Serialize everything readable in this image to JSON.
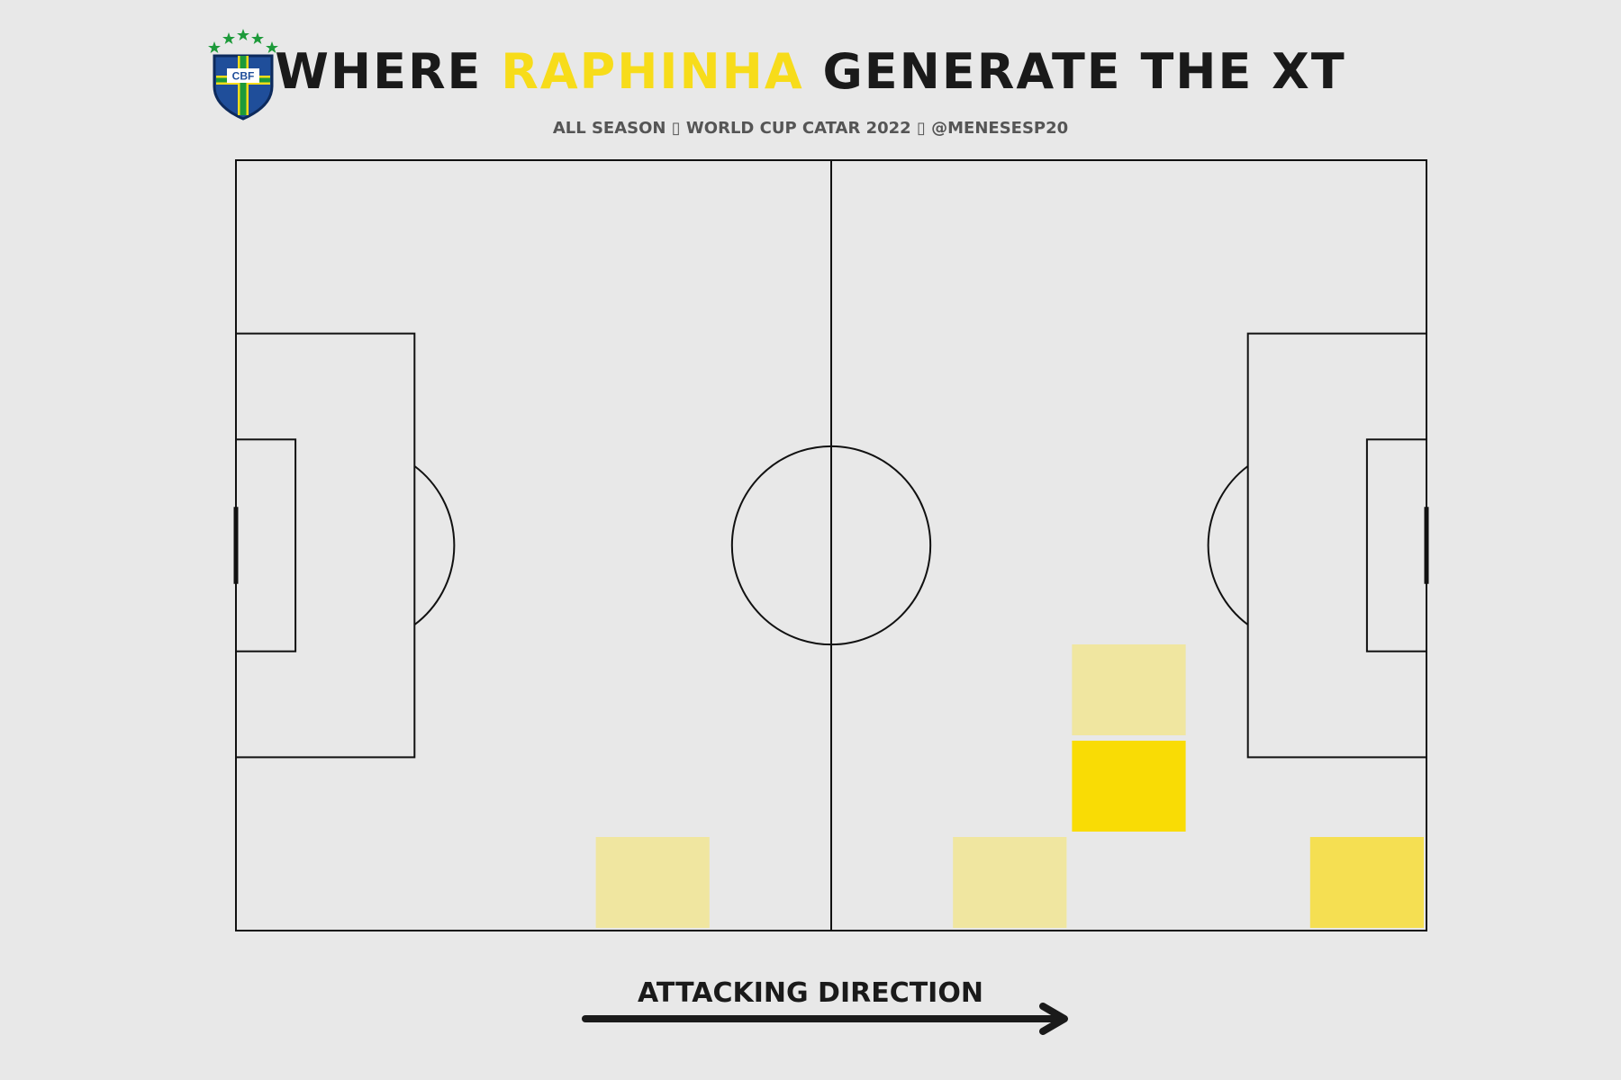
{
  "header": {
    "title_prefix": "Where ",
    "title_highlight": "Raphinha",
    "title_suffix": " generate the xT",
    "subtitle": "All season ▯ World Cup Catar 2022 ▯ @MENESESP20",
    "highlight_color": "#f7dc1a"
  },
  "logo": {
    "icon": "cbf-crest-icon",
    "text": "CBF"
  },
  "footer": {
    "direction_label": "Attacking Direction",
    "arrow_icon": "arrow-right-icon"
  },
  "chart_data": {
    "type": "heatmap",
    "title": "Where Raphinha generate the xT",
    "x_range": [
      0,
      120
    ],
    "y_range": [
      0,
      80
    ],
    "grid": [
      12,
      8
    ],
    "colors": {
      "background": "#e8e8e8",
      "line": "#111111",
      "cell_low": "#f0e6a0",
      "cell_mid": "#f5df52",
      "cell_high": "#f9dc05"
    },
    "cells": [
      {
        "x0": 36,
        "x1": 48,
        "y0": 0,
        "y1": 10,
        "value": 0.25
      },
      {
        "x0": 72,
        "x1": 84,
        "y0": 0,
        "y1": 10,
        "value": 0.25
      },
      {
        "x0": 84,
        "x1": 96,
        "y0": 10,
        "y1": 20,
        "value": 1.0
      },
      {
        "x0": 84,
        "x1": 96,
        "y0": 20,
        "y1": 30,
        "value": 0.25
      },
      {
        "x0": 108,
        "x1": 120,
        "y0": 0,
        "y1": 10,
        "value": 0.6
      }
    ]
  }
}
